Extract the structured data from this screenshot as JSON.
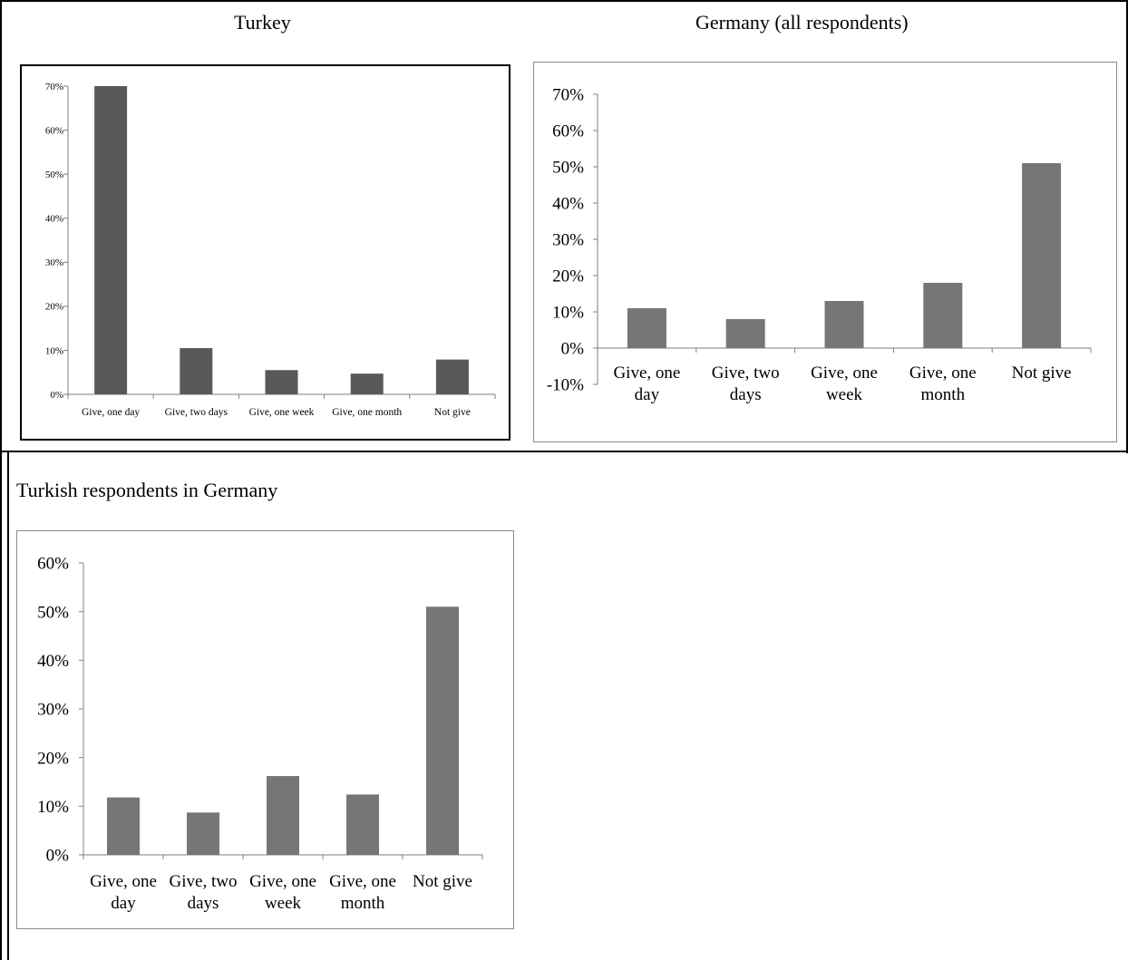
{
  "chart_data": [
    {
      "type": "bar",
      "title": "Turkey",
      "categories": [
        "Give, one day",
        "Give, two days",
        "Give, one week",
        "Give, one month",
        "Not give"
      ],
      "values": [
        0.7,
        0.105,
        0.055,
        0.047,
        0.079
      ],
      "ylim": [
        0,
        0.7
      ],
      "yticks": [
        "0%",
        "10%",
        "20%",
        "30%",
        "40%",
        "50%",
        "60%",
        "70%"
      ],
      "grid": false,
      "bar_color": "#595959"
    },
    {
      "type": "bar",
      "title": "Germany (all respondents)",
      "categories": [
        "Give, one day",
        "Give, two days",
        "Give, one week",
        "Give, one month",
        "Not give"
      ],
      "values": [
        0.11,
        0.08,
        0.13,
        0.18,
        0.51
      ],
      "ylim": [
        -0.1,
        0.7
      ],
      "yticks": [
        "-10%",
        "0%",
        "10%",
        "20%",
        "30%",
        "40%",
        "50%",
        "60%",
        "70%"
      ],
      "grid": false,
      "bar_color": "#767676"
    },
    {
      "type": "bar",
      "title": "Turkish respondents in Germany",
      "categories": [
        "Give, one day",
        "Give, two days",
        "Give, one week",
        "Give, one month",
        "Not give"
      ],
      "values": [
        0.118,
        0.087,
        0.162,
        0.124,
        0.51
      ],
      "ylim": [
        0,
        0.6
      ],
      "yticks": [
        "0%",
        "10%",
        "20%",
        "30%",
        "40%",
        "50%",
        "60%"
      ],
      "grid": false,
      "bar_color": "#767676"
    }
  ]
}
